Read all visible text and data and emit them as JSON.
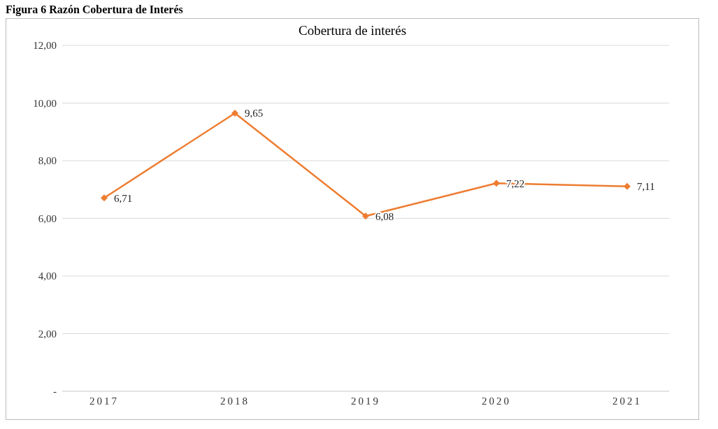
{
  "chart_data": {
    "type": "line",
    "title": "Cobertura de interés",
    "annotations": [
      "Figura 6 Razón Cobertura de Interés"
    ],
    "categories": [
      "2017",
      "2018",
      "2019",
      "2020",
      "2021"
    ],
    "series": [
      {
        "color": "#ed7d31",
        "values": [
          6.71,
          9.65,
          6.08,
          7.22,
          7.11
        ],
        "value_labels": [
          "6,71",
          "9,65",
          "6,08",
          "7,22",
          "7,11"
        ]
      }
    ],
    "ylim": [
      0,
      12
    ],
    "yticks": [
      {
        "value": 0,
        "label": "-"
      },
      {
        "value": 2,
        "label": "2,00"
      },
      {
        "value": 4,
        "label": "4,00"
      },
      {
        "value": 6,
        "label": "6,00"
      },
      {
        "value": 8,
        "label": "8,00"
      },
      {
        "value": 10,
        "label": "10,00"
      },
      {
        "value": 12,
        "label": "12,00"
      }
    ],
    "grid": "y",
    "marker": "diamond",
    "line_style": "solid",
    "legend": false
  }
}
